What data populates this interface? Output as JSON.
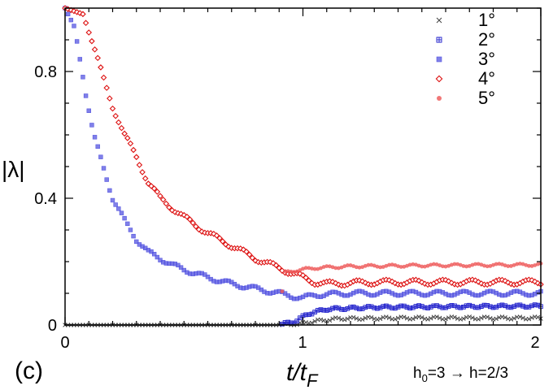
{
  "chart_data": {
    "type": "scatter",
    "title": "",
    "xlabel": "t/t",
    "xlabel_sub": "F",
    "ylabel": "|λ|",
    "xlim": [
      0,
      2
    ],
    "ylim": [
      0,
      1
    ],
    "x_ticks": [
      0,
      1,
      2
    ],
    "y_ticks": [
      0,
      0.4,
      0.8
    ],
    "x_tick_labels": [
      "0",
      "1",
      "2"
    ],
    "y_tick_labels": [
      "0",
      "0.4",
      "0.8"
    ],
    "panel_label": "(c)",
    "annotation": {
      "h0_label": "h",
      "h0_sub": "0",
      "h0_rest": "=3 → h=2/3"
    },
    "legend_position": "top-right",
    "sample_step": 0.0125,
    "series": [
      {
        "name": "1°",
        "marker": "x",
        "color": "#444444",
        "anchors": [
          [
            0,
            0.0
          ],
          [
            0.9,
            0.0
          ],
          [
            0.98,
            0.003
          ],
          [
            1.05,
            0.012
          ],
          [
            1.15,
            0.02
          ],
          [
            1.4,
            0.022
          ],
          [
            2.0,
            0.022
          ]
        ],
        "osc_amp": 0.004,
        "osc_period": 0.07
      },
      {
        "name": "2°",
        "marker": "square-open",
        "color": "#2222cc",
        "anchors": [
          [
            0,
            0.0
          ],
          [
            0.9,
            0.0
          ],
          [
            0.97,
            0.012
          ],
          [
            1.02,
            0.035
          ],
          [
            1.1,
            0.05
          ],
          [
            1.3,
            0.056
          ],
          [
            1.6,
            0.058
          ],
          [
            2.0,
            0.06
          ]
        ],
        "osc_amp": 0.004,
        "osc_period": 0.07
      },
      {
        "name": "3°",
        "marker": "square-filled",
        "color": "#5555e0",
        "anchors": [
          [
            0,
            1.0
          ],
          [
            0.04,
            0.94
          ],
          [
            0.08,
            0.76
          ],
          [
            0.12,
            0.6
          ],
          [
            0.16,
            0.5
          ],
          [
            0.2,
            0.4
          ],
          [
            0.25,
            0.33
          ],
          [
            0.3,
            0.27
          ],
          [
            0.35,
            0.23
          ],
          [
            0.4,
            0.21
          ],
          [
            0.45,
            0.19
          ],
          [
            0.5,
            0.175
          ],
          [
            0.6,
            0.15
          ],
          [
            0.7,
            0.13
          ],
          [
            0.8,
            0.115
          ],
          [
            0.9,
            0.1
          ],
          [
            0.96,
            0.09
          ],
          [
            1.0,
            0.085
          ],
          [
            1.05,
            0.095
          ],
          [
            1.2,
            0.1
          ],
          [
            2.0,
            0.1
          ]
        ],
        "osc_amp": 0.007,
        "osc_period": 0.11
      },
      {
        "name": "4°",
        "marker": "diamond-open",
        "color": "#dd1111",
        "anchors": [
          [
            0,
            1.0
          ],
          [
            0.08,
            0.98
          ],
          [
            0.12,
            0.88
          ],
          [
            0.16,
            0.78
          ],
          [
            0.2,
            0.69
          ],
          [
            0.25,
            0.6
          ],
          [
            0.3,
            0.53
          ],
          [
            0.35,
            0.45
          ],
          [
            0.4,
            0.4
          ],
          [
            0.5,
            0.34
          ],
          [
            0.6,
            0.29
          ],
          [
            0.7,
            0.25
          ],
          [
            0.8,
            0.21
          ],
          [
            0.9,
            0.18
          ],
          [
            0.95,
            0.165
          ],
          [
            1.0,
            0.15
          ],
          [
            1.05,
            0.135
          ],
          [
            1.1,
            0.13
          ],
          [
            1.3,
            0.135
          ],
          [
            2.0,
            0.135
          ]
        ],
        "osc_amp": 0.008,
        "osc_period": 0.12
      },
      {
        "name": "5°",
        "marker": "circle-filled",
        "color": "#ee5555",
        "anchors": [
          [
            0,
            0.0
          ],
          [
            0.9,
            0.0
          ],
          [
            0.92,
            0.165
          ],
          [
            0.95,
            0.17
          ],
          [
            1.0,
            0.175
          ],
          [
            1.05,
            0.18
          ],
          [
            1.2,
            0.185
          ],
          [
            1.5,
            0.188
          ],
          [
            2.0,
            0.19
          ]
        ],
        "osc_amp": 0.004,
        "osc_period": 0.09
      }
    ]
  }
}
